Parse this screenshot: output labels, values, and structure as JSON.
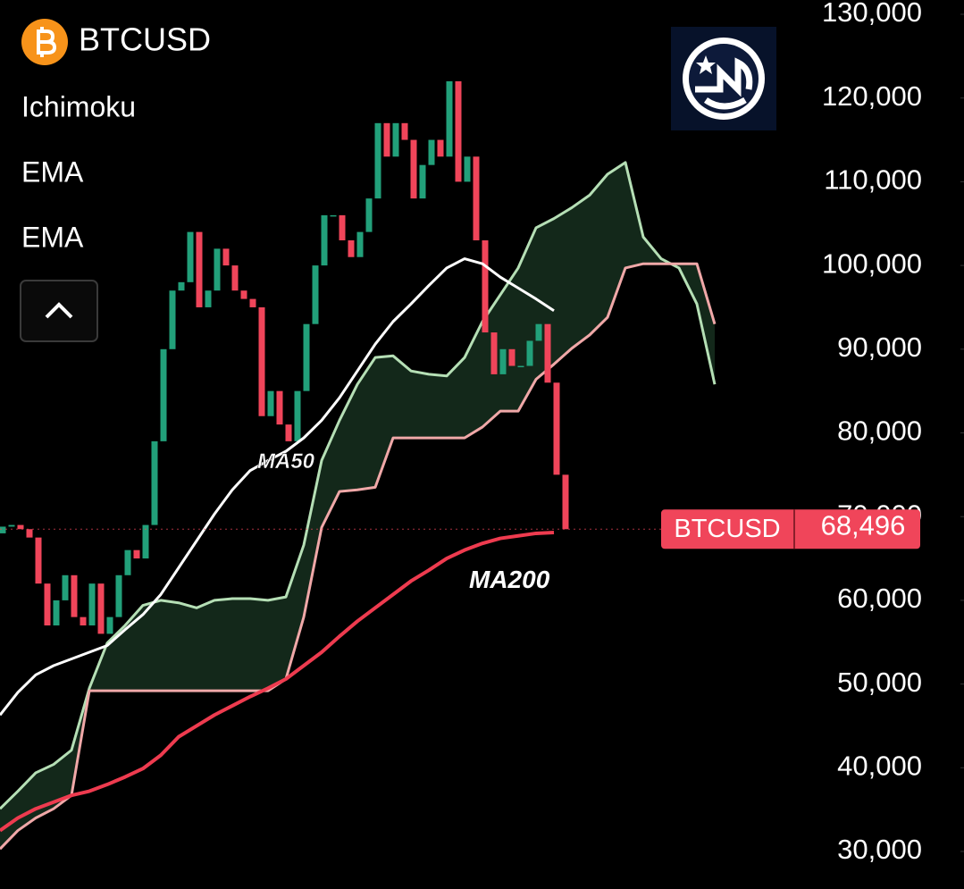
{
  "chart_data": {
    "type": "candlestick",
    "title": "BTCUSD",
    "indicators": [
      "Ichimoku",
      "EMA",
      "EMA"
    ],
    "open": [
      68000,
      68800,
      69000,
      68500,
      67500,
      62000,
      57000,
      60000,
      63000,
      58000,
      57000,
      62000,
      56000,
      58000,
      63000,
      66000,
      65000,
      69000,
      79000,
      90000,
      97000,
      98000,
      104000,
      95000,
      97000,
      102000,
      100000,
      97000,
      96000,
      95000,
      82000,
      85000,
      81000,
      79000,
      85000,
      93000,
      100000,
      106000,
      106000,
      103000,
      101000,
      104000,
      108000,
      117000,
      113000,
      117000,
      115000,
      108000,
      112000,
      115000,
      113000,
      122000,
      110000,
      113000,
      103000,
      92000,
      87000,
      90000,
      88000,
      88000,
      91000,
      93000,
      86000,
      75000
    ],
    "close": [
      68800,
      69000,
      68500,
      67500,
      62000,
      57000,
      60000,
      63000,
      58000,
      57000,
      62000,
      56000,
      58000,
      63000,
      66000,
      65000,
      69000,
      79000,
      90000,
      97000,
      98000,
      104000,
      95000,
      97000,
      102000,
      100000,
      97000,
      96000,
      95000,
      82000,
      85000,
      81000,
      79000,
      85000,
      93000,
      100000,
      106000,
      106000,
      103000,
      101000,
      104000,
      108000,
      117000,
      113000,
      117000,
      115000,
      108000,
      112000,
      115000,
      113000,
      122000,
      110000,
      113000,
      103000,
      92000,
      87000,
      90000,
      88000,
      88000,
      91000,
      93000,
      86000,
      75000,
      68496
    ],
    "up_color": "#22a07a",
    "down_color": "#f0455a",
    "series": [
      {
        "name": "MA50",
        "color": "#ffffff",
        "values": [
          46300,
          49000,
          51100,
          52200,
          53000,
          53800,
          54600,
          56500,
          58300,
          60700,
          63900,
          67100,
          70300,
          73200,
          75500,
          76700,
          77800,
          79400,
          81500,
          84200,
          87400,
          90600,
          93300,
          95400,
          97600,
          99700,
          100800,
          100200,
          98600,
          97300,
          96000,
          94600,
          null,
          null,
          null,
          null,
          null,
          null,
          null,
          null,
          null
        ]
      },
      {
        "name": "MA200",
        "color": "#ee3b4f",
        "values": [
          32500,
          34000,
          35100,
          35900,
          36700,
          37200,
          38000,
          38900,
          39900,
          41500,
          43700,
          45000,
          46300,
          47400,
          48500,
          49500,
          50600,
          52200,
          53800,
          55700,
          57500,
          59100,
          60700,
          62300,
          63600,
          65000,
          66000,
          66800,
          67400,
          67700,
          68000,
          68100,
          null,
          null,
          null,
          null,
          null,
          null,
          null,
          null,
          null
        ]
      },
      {
        "name": "Ichimoku",
        "color": "#b5dfb5",
        "values": [
          35100,
          37200,
          39400,
          40400,
          42100,
          49500,
          54900,
          57000,
          59400,
          60000,
          59700,
          59100,
          60000,
          60200,
          60200,
          60000,
          60400,
          66600,
          76700,
          81500,
          85800,
          89000,
          89200,
          87400,
          87000,
          86800,
          89000,
          93300,
          96500,
          99700,
          104500,
          105600,
          106900,
          108400,
          110900,
          112300,
          103400,
          100800,
          99700,
          95400,
          85800
        ]
      },
      {
        "name": "Ichimoku",
        "color": "#f0a8a8",
        "values": [
          30300,
          32500,
          34000,
          35100,
          36700,
          49200,
          49200,
          49200,
          49200,
          49200,
          49200,
          49200,
          49200,
          49200,
          49200,
          49200,
          50600,
          58000,
          68700,
          73000,
          73200,
          73500,
          79400,
          79400,
          79400,
          79400,
          79400,
          80700,
          82600,
          82600,
          86400,
          88200,
          90100,
          91700,
          93800,
          99700,
          100200,
          100200,
          100200,
          100200,
          93000
        ]
      }
    ],
    "cloud_color": "#13281a",
    "last_price": {
      "name": "BTCUSD",
      "value": 68496,
      "label": "68,496",
      "color": "#f0455a"
    },
    "ylim": [
      30000,
      130000
    ],
    "yticks": [
      {
        "value": 130000,
        "label": "130,000"
      },
      {
        "value": 120000,
        "label": "120,000"
      },
      {
        "value": 110000,
        "label": "110,000"
      },
      {
        "value": 100000,
        "label": "100,000"
      },
      {
        "value": 90000,
        "label": "90,000"
      },
      {
        "value": 80000,
        "label": "80,000"
      },
      {
        "value": 70000,
        "label": "70,000"
      },
      {
        "value": 60000,
        "label": "60,000"
      },
      {
        "value": 50000,
        "label": "50,000"
      },
      {
        "value": 40000,
        "label": "40,000"
      },
      {
        "value": 30000,
        "label": "30,000"
      }
    ],
    "grid": false
  }
}
